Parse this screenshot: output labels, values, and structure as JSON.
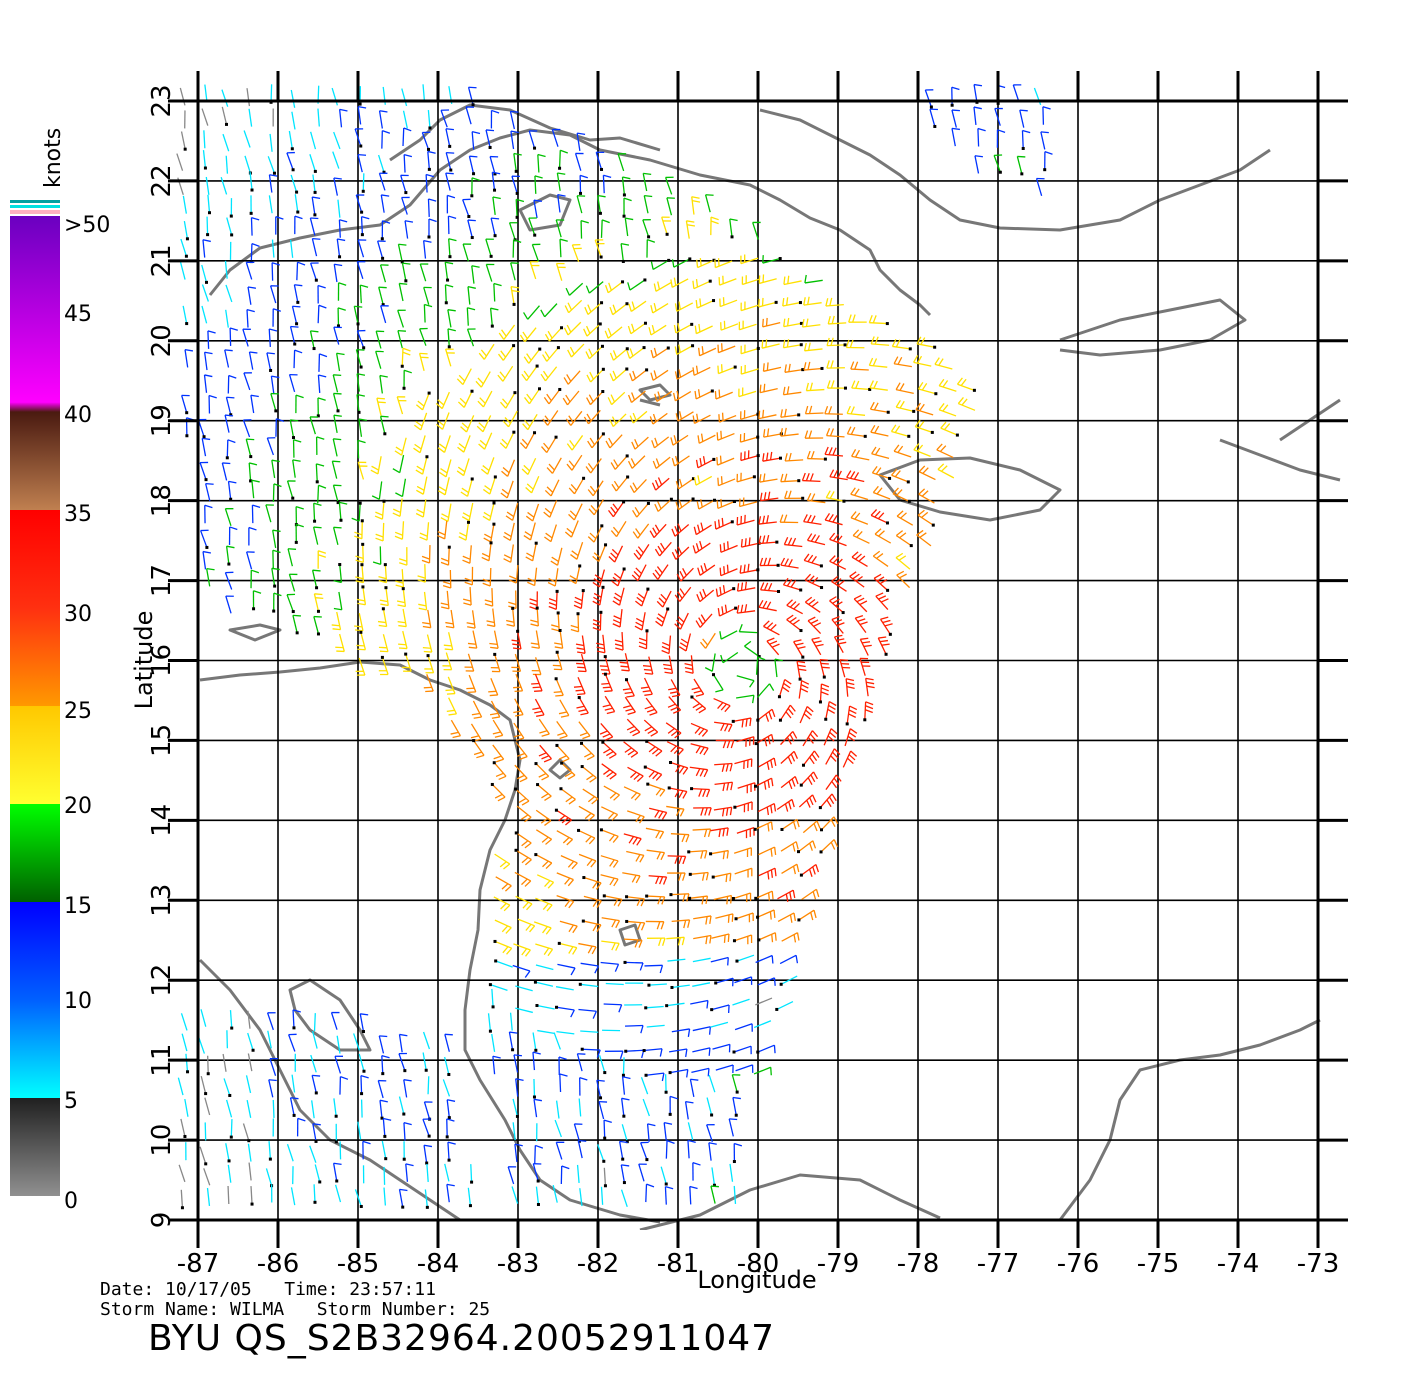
{
  "map": {
    "x_axis": {
      "label": "Longitude",
      "ticks": [
        "-87",
        "-86",
        "-85",
        "-84",
        "-83",
        "-82",
        "-81",
        "-80",
        "-79",
        "-78",
        "-77",
        "-76",
        "-75",
        "-74",
        "-73"
      ]
    },
    "y_axis": {
      "label": "Latitude",
      "ticks": [
        "9",
        "10",
        "11",
        "12",
        "13",
        "14",
        "15",
        "16",
        "17",
        "18",
        "19",
        "20",
        "21",
        "22",
        "23"
      ]
    },
    "lon_range": [
      -87,
      -73
    ],
    "lat_range": [
      9,
      23
    ],
    "coastline_color": "#777777",
    "grid_color": "#000000"
  },
  "colorbar": {
    "unit": "knots",
    "labels": [
      ">50",
      "45",
      "40",
      "35",
      "30",
      "25",
      "20",
      "15",
      "10",
      "5",
      "0"
    ],
    "colors": {
      "calm": "#888888",
      "light": "#00e5ff",
      "moderate": "#0033ff",
      "fresh": "#00c000",
      "strong": "#ffe000",
      "gale": "#ff8800",
      "storm": "#ff2000",
      "severe": "#a05030",
      "violent": "#ff00ff",
      "extreme": "#6a00c0"
    }
  },
  "storm": {
    "center_lon": -80.2,
    "center_lat": 15.9
  },
  "meta": {
    "date_time": "Date: 10/17/05   Time: 23:57:11",
    "storm_line": "Storm Name: WILMA   Storm Number: 25",
    "product_id": "BYU QS_S2B32964.20052911047"
  }
}
